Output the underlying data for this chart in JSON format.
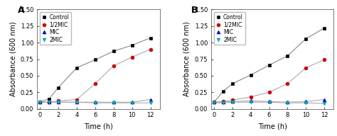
{
  "time": [
    0,
    1,
    2,
    4,
    6,
    8,
    10,
    12
  ],
  "panel_A": {
    "label": "A",
    "control": [
      0.1,
      0.15,
      0.32,
      0.62,
      0.74,
      0.87,
      0.96,
      1.07
    ],
    "half_mic": [
      0.1,
      0.1,
      0.12,
      0.14,
      0.38,
      0.65,
      0.78,
      0.9
    ],
    "mic": [
      0.1,
      0.1,
      0.1,
      0.1,
      0.1,
      0.1,
      0.1,
      0.14
    ],
    "two_mic": [
      0.1,
      0.1,
      0.1,
      0.1,
      0.09,
      0.09,
      0.09,
      0.09
    ],
    "ylim": [
      0.0,
      1.5
    ],
    "yticks": [
      0.0,
      0.25,
      0.5,
      0.75,
      1.0,
      1.25,
      1.5
    ]
  },
  "panel_B": {
    "label": "B",
    "control": [
      0.1,
      0.26,
      0.38,
      0.51,
      0.66,
      0.8,
      1.06,
      1.22
    ],
    "half_mic": [
      0.1,
      0.11,
      0.13,
      0.18,
      0.25,
      0.38,
      0.62,
      0.74
    ],
    "mic": [
      0.1,
      0.1,
      0.11,
      0.12,
      0.11,
      0.1,
      0.11,
      0.14
    ],
    "two_mic": [
      0.09,
      0.09,
      0.1,
      0.1,
      0.1,
      0.09,
      0.09,
      0.08
    ],
    "ylim": [
      0.0,
      1.5
    ],
    "yticks": [
      0.0,
      0.25,
      0.5,
      0.75,
      1.0,
      1.25,
      1.5
    ]
  },
  "series": [
    {
      "key": "control",
      "label": "Control",
      "color": "#000000",
      "marker": "s",
      "line_color": "#888888"
    },
    {
      "key": "half_mic",
      "label": "1/2MIC",
      "color": "#cc0000",
      "marker": "o",
      "line_color": "#aaaaaa"
    },
    {
      "key": "mic",
      "label": "MIC",
      "color": "#0000cc",
      "marker": "^",
      "line_color": "#aaaaaa"
    },
    {
      "key": "two_mic",
      "label": "2MIC",
      "color": "#00aaaa",
      "marker": "v",
      "line_color": "#aaaaaa"
    }
  ],
  "xlabel": "Time (h)",
  "ylabel": "Absorbance (600 nm)",
  "xticks": [
    0,
    2,
    4,
    6,
    8,
    10,
    12
  ],
  "xlim": [
    -0.3,
    13.0
  ],
  "background_color": "#ffffff",
  "markersize": 3.5,
  "linewidth": 0.8,
  "fontsize_tick": 6,
  "fontsize_label": 7,
  "fontsize_legend": 5.5,
  "fontsize_panel": 9
}
